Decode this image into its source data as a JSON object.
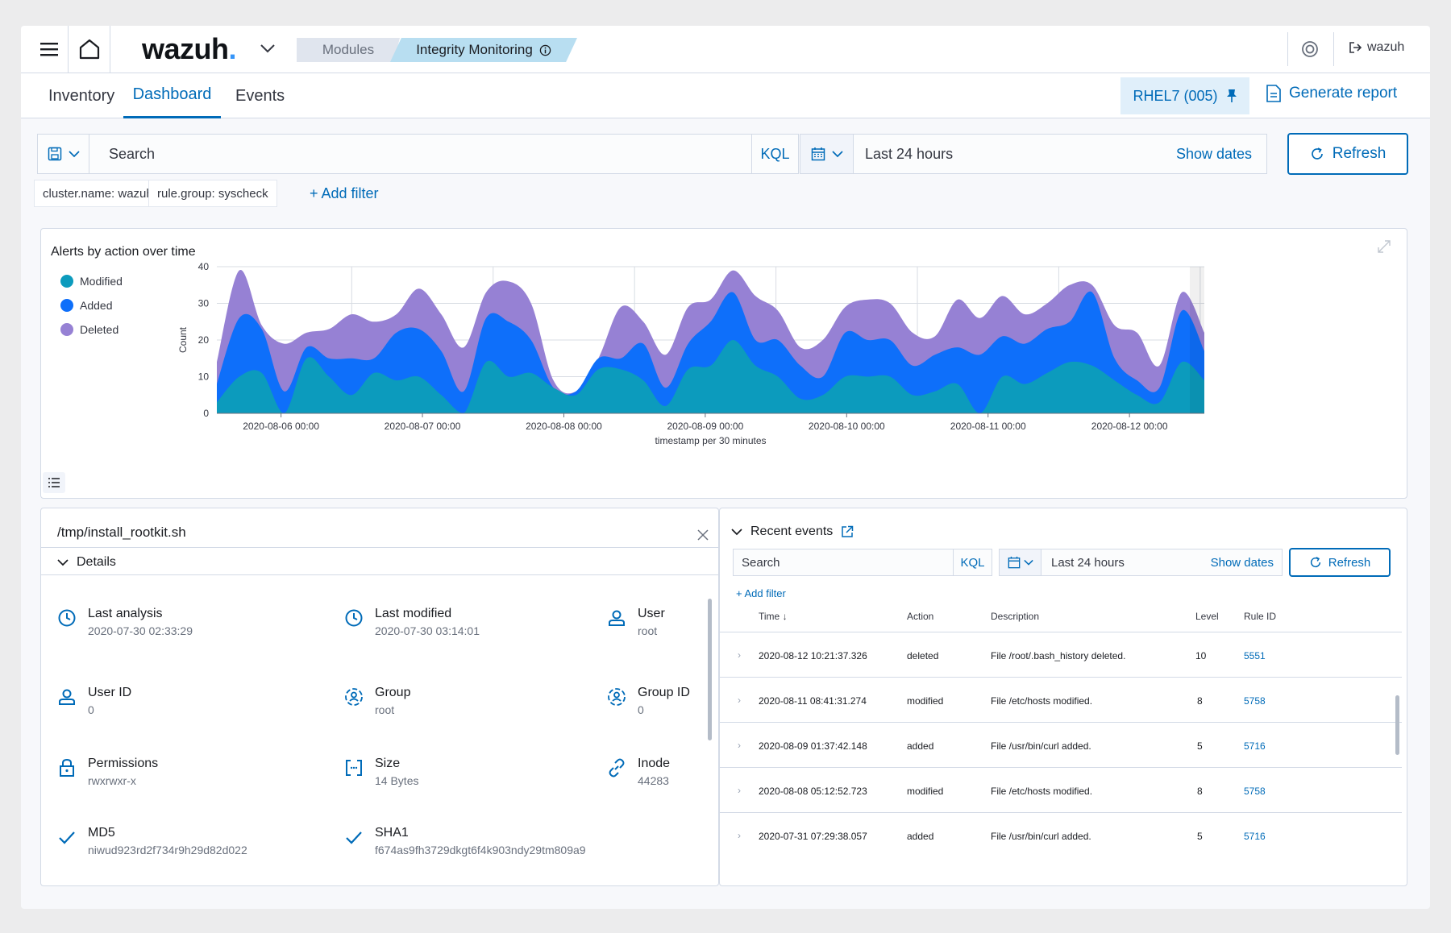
{
  "topbar": {
    "logo": "wazuh",
    "logo_dot": ".",
    "breadcrumb_modules": "Modules",
    "breadcrumb_current": "Integrity Monitoring",
    "user": "wazuh"
  },
  "tabs": [
    {
      "label": "Inventory",
      "active": false
    },
    {
      "label": "Dashboard",
      "active": true
    },
    {
      "label": "Events",
      "active": false
    }
  ],
  "agent": {
    "label": "RHEL7 (005)"
  },
  "generate_report": "Generate report",
  "search": {
    "placeholder": "Search",
    "kql": "KQL"
  },
  "time": {
    "range": "Last 24 hours",
    "show_dates": "Show dates",
    "refresh": "Refresh"
  },
  "filters": [
    {
      "label": "cluster.name: wazuh"
    },
    {
      "label": "rule.group: syscheck"
    }
  ],
  "add_filter": "+ Add filter",
  "chart_data": {
    "type": "area",
    "title": "Alerts by action over time",
    "xlabel": "timestamp per 30 minutes",
    "ylabel": "Count",
    "ylim": [
      0,
      40
    ],
    "yticks": [
      0,
      10,
      20,
      30,
      40
    ],
    "grid": true,
    "legend_position": "left",
    "stacked": true,
    "x_tick_labels": [
      "2020-08-06 00:00",
      "2020-08-07 00:00",
      "2020-08-08 00:00",
      "2020-08-09 00:00",
      "2020-08-10 00:00",
      "2020-08-11 00:00",
      "2020-08-12 00:00"
    ],
    "series": [
      {
        "name": "Modified",
        "color": "#0c9bbd",
        "values": [
          3,
          10,
          11,
          0,
          15,
          10,
          5,
          11,
          9,
          10,
          5,
          0,
          14,
          10,
          11,
          7,
          5,
          12,
          12,
          9,
          2,
          12,
          13,
          20,
          13,
          10,
          4,
          5,
          10,
          10,
          10,
          5,
          6,
          8,
          0,
          10,
          8,
          11,
          14,
          13,
          9,
          5,
          3,
          14,
          9
        ]
      },
      {
        "name": "Added",
        "color": "#0e6ffa",
        "values": [
          5,
          16,
          12,
          6,
          3,
          5,
          10,
          4,
          13,
          13,
          12,
          6,
          12,
          15,
          9,
          0,
          1,
          3,
          3,
          10,
          5,
          7,
          12,
          13,
          7,
          10,
          9,
          5,
          12,
          10,
          10,
          8,
          10,
          10,
          16,
          11,
          11,
          12,
          11,
          20,
          6,
          4,
          4,
          14,
          8
        ]
      },
      {
        "name": "Deleted",
        "color": "#9681d4",
        "values": [
          6,
          13,
          1,
          13,
          4,
          8,
          12,
          10,
          5,
          11,
          10,
          12,
          7,
          11,
          10,
          2,
          0,
          0,
          14,
          6,
          9,
          10,
          6,
          6,
          12,
          8,
          5,
          10,
          7,
          11,
          10,
          9,
          5,
          13,
          10,
          11,
          8,
          7,
          10,
          2,
          9,
          13,
          6,
          5,
          5
        ]
      }
    ]
  },
  "details": {
    "path": "/tmp/install_rootkit.sh",
    "section": "Details",
    "attributes": [
      {
        "label": "Last analysis",
        "value": "2020-07-30 02:33:29",
        "icon": "clock-icon"
      },
      {
        "label": "Last modified",
        "value": "2020-07-30 03:14:01",
        "icon": "clock-icon"
      },
      {
        "label": "User",
        "value": "root",
        "icon": "user-icon"
      },
      {
        "label": "User ID",
        "value": "0",
        "icon": "user-icon"
      },
      {
        "label": "Group",
        "value": "root",
        "icon": "group-icon"
      },
      {
        "label": "Group ID",
        "value": "0",
        "icon": "group-icon"
      },
      {
        "label": "Permissions",
        "value": "rwxrwxr-x",
        "icon": "lock-icon"
      },
      {
        "label": "Size",
        "value": "14 Bytes",
        "icon": "size-icon"
      },
      {
        "label": "Inode",
        "value": "44283",
        "icon": "link-icon"
      },
      {
        "label": "MD5",
        "value": "niwud923rd2f734r9h29d82d022",
        "icon": "check-icon"
      },
      {
        "label": "SHA1",
        "value": "f674as9fh3729dkgt6f4k903ndy29tm809a9",
        "icon": "check-icon"
      }
    ]
  },
  "events": {
    "title": "Recent events",
    "search_placeholder": "Search",
    "kql": "KQL",
    "range": "Last 24 hours",
    "show_dates": "Show dates",
    "refresh": "Refresh",
    "add_filter": "+ Add filter",
    "columns": [
      "Time",
      "Action",
      "Description",
      "Level",
      "Rule ID"
    ],
    "rows": [
      {
        "time": "2020-08-12  10:21:37.326",
        "action": "deleted",
        "description": "File /root/.bash_history deleted.",
        "level": "10",
        "rule": "5551"
      },
      {
        "time": "2020-08-11  08:41:31.274",
        "action": "modified",
        "description": "File  /etc/hosts  modified.",
        "level": "8",
        "rule": "5758"
      },
      {
        "time": "2020-08-09  01:37:42.148",
        "action": "added",
        "description": "File  /usr/bin/curl  added.",
        "level": "5",
        "rule": "5716"
      },
      {
        "time": "2020-08-08  05:12:52.723",
        "action": "modified",
        "description": "File  /etc/hosts  modified.",
        "level": "8",
        "rule": "5758"
      },
      {
        "time": "2020-07-31  07:29:38.057",
        "action": "added",
        "description": "File  /usr/bin/curl  added.",
        "level": "5",
        "rule": "5716"
      }
    ]
  }
}
